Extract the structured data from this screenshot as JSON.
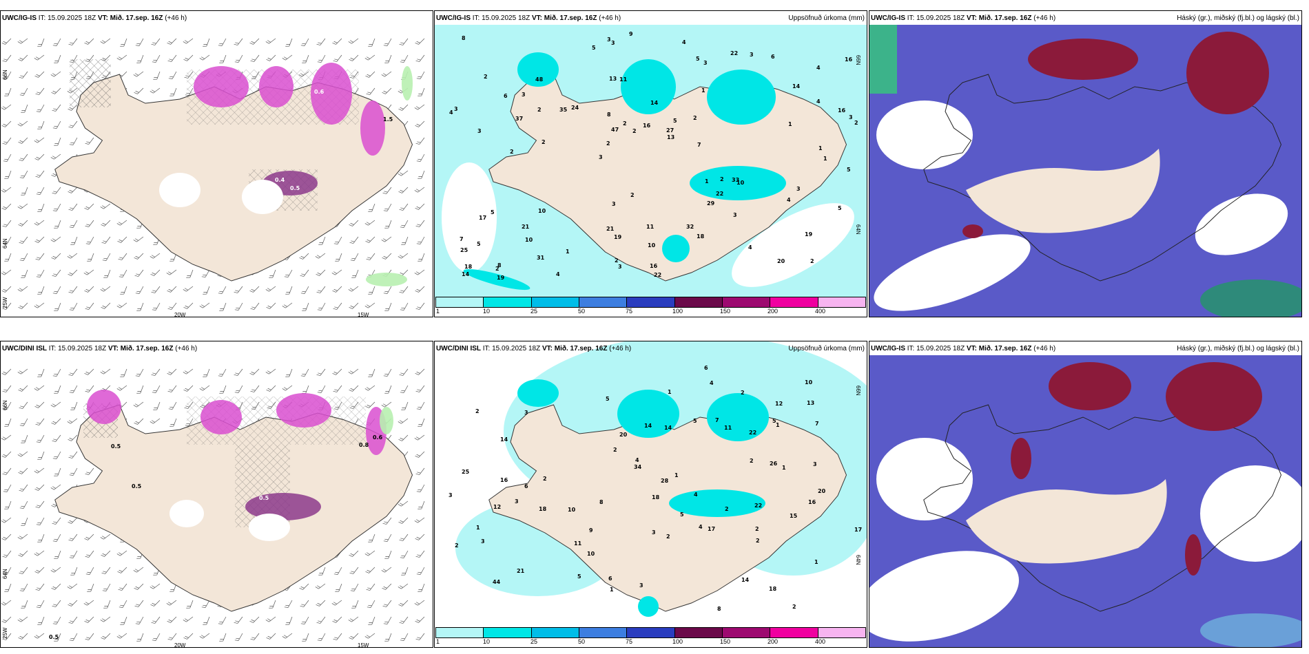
{
  "panels": [
    {
      "id": "p1",
      "model": "UWC/IG-IS",
      "it_label": "IT:",
      "it_value": "15.09.2025 18Z",
      "vt_label": "VT:",
      "vt_value": "Mið. 17.sep. 16Z",
      "lead": "(+46 h)",
      "right_title": "",
      "type": "wind",
      "lat_labels": [
        "66N",
        "64N",
        "25W"
      ],
      "lon_labels": [
        "20W",
        "15W"
      ],
      "values": [
        "0.4",
        "0.6",
        "0.5",
        "1.5"
      ]
    },
    {
      "id": "p2",
      "model": "UWC/IG-IS",
      "it_label": "IT:",
      "it_value": "15.09.2025 18Z",
      "vt_label": "VT:",
      "vt_value": "Mið. 17.sep. 16Z",
      "lead": "(+46 h)",
      "right_title": "Uppsöfnuð úrkoma (mm)",
      "type": "precip",
      "lat_labels": [
        "66N",
        "64N"
      ],
      "values": [
        "2",
        "3",
        "4",
        "3",
        "1",
        "8",
        "13",
        "14",
        "5",
        "24",
        "25",
        "10",
        "11",
        "5",
        "10",
        "2",
        "3",
        "2",
        "1",
        "4",
        "2",
        "21",
        "47",
        "48",
        "22",
        "10",
        "20",
        "19",
        "33",
        "22",
        "35",
        "37",
        "29",
        "31",
        "16",
        "27",
        "18",
        "19",
        "13",
        "17",
        "14",
        "16",
        "22",
        "18",
        "21",
        "19",
        "14",
        "11",
        "6",
        "9",
        "2",
        "3",
        "3",
        "3",
        "2",
        "4",
        "5",
        "2",
        "5",
        "3",
        "1",
        "2",
        "2",
        "7",
        "8",
        "6",
        "5",
        "8",
        "10",
        "16",
        "5",
        "7",
        "3",
        "2",
        "1",
        "2",
        "4",
        "16",
        "32",
        "3",
        "1",
        "2",
        "3",
        "2",
        "4",
        "4",
        "3",
        "5",
        "3",
        "2",
        "4",
        "1",
        "3"
      ]
    },
    {
      "id": "p3",
      "model": "UWC/IG-IS",
      "it_label": "IT:",
      "it_value": "15.09.2025 18Z",
      "vt_label": "VT:",
      "vt_value": "Mið. 17.sep. 16Z",
      "lead": "(+46 h)",
      "right_title": "Háský (gr.), miðský (fj.bl.) og lágský (bl.)",
      "type": "cloud"
    },
    {
      "id": "p4",
      "model": "UWC/DINI ISL",
      "it_label": "IT:",
      "it_value": "15.09.2025 18Z",
      "vt_label": "VT:",
      "vt_value": "Mið. 17.sep. 16Z",
      "lead": "(+46 h)",
      "right_title": "",
      "type": "wind",
      "lat_labels": [
        "66N",
        "64N",
        "25W"
      ],
      "lon_labels": [
        "20W",
        "15W"
      ],
      "values": [
        "0.5",
        "0.5",
        "0.8",
        "0.6",
        "0.5",
        "0.5"
      ]
    },
    {
      "id": "p5",
      "model": "UWC/DINI ISL",
      "it_label": "IT:",
      "it_value": "15.09.2025 18Z",
      "vt_label": "VT:",
      "vt_value": "Mið. 17.sep. 16Z",
      "lead": "(+46 h)",
      "right_title": "Uppsöfnuð úrkoma (mm)",
      "type": "precip",
      "lat_labels": [
        "66N",
        "64N"
      ],
      "values": [
        "2",
        "3",
        "4",
        "2",
        "1",
        "14",
        "21",
        "10",
        "22",
        "14",
        "11",
        "18",
        "10",
        "5",
        "4",
        "3",
        "22",
        "28",
        "25",
        "44",
        "10",
        "14",
        "26",
        "17",
        "20",
        "16",
        "18",
        "18",
        "34",
        "13",
        "17",
        "12",
        "11",
        "7",
        "20",
        "15",
        "16",
        "14",
        "12",
        "8",
        "9",
        "2",
        "5",
        "6",
        "8",
        "6",
        "7",
        "4",
        "5",
        "3",
        "2",
        "3",
        "2",
        "1",
        "2",
        "3",
        "1",
        "4",
        "5",
        "2",
        "6",
        "5",
        "3",
        "1",
        "2",
        "1",
        "2",
        "1",
        "2",
        "1",
        "2",
        "3"
      ]
    }
  ],
  "colorbar": {
    "labels": [
      "1",
      "10",
      "25",
      "50",
      "75",
      "100",
      "150",
      "200",
      "400"
    ],
    "colors": [
      "#b4f6f6",
      "#00e6e6",
      "#00bde8",
      "#3d7ee0",
      "#2a3dbf",
      "#6b0a4a",
      "#9d0a70",
      "#f000a0",
      "#f7b4f0"
    ]
  },
  "colors": {
    "land": "#f3e6d8",
    "precip_light": "#b4f6f6",
    "precip_mid": "#00e6e6",
    "cloud_mid": "#5a5ac8",
    "cloud_high": "#8b1a3a",
    "cloud_low": "#6ab0e8",
    "wind_precip": "#d94fd0",
    "wind_green": "#b8f0b0"
  }
}
